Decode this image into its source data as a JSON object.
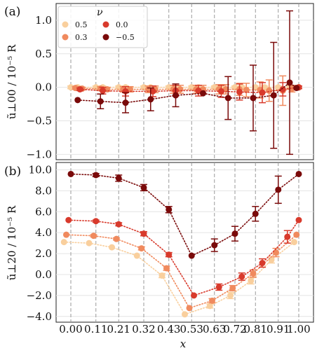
{
  "figure": {
    "xlabel": "x",
    "x_tick_labels": [
      "0.00",
      "0.11",
      "0.21",
      "0.32",
      "0.43",
      "0.53",
      "0.63",
      "0.72",
      "0.81",
      "0.91",
      "1.00"
    ]
  },
  "legend": {
    "title": "ν",
    "entries": [
      {
        "label": "0.5",
        "color": "#f9cf9d"
      },
      {
        "label": "0.3",
        "color": "#f08a5e"
      },
      {
        "label": "0.0",
        "color": "#d83a2c"
      },
      {
        "label": "−0.5",
        "color": "#7a0a0a"
      }
    ]
  },
  "chart_data": [
    {
      "type": "scatter",
      "panel": "(a)",
      "ylabel": "ũ⊥00 / 10⁻⁵ R",
      "ylim": [
        -1.08,
        1.25
      ],
      "y_ticks": [
        -1.0,
        -0.5,
        0.0,
        0.5,
        1.0
      ],
      "y_tick_labels": [
        "−1.0",
        "−0.5",
        "0.0",
        "0.5",
        "1.0"
      ],
      "grid": "horizontal grid lines at y ticks; dashed vertical lines at x ticks",
      "series": [
        {
          "name": "0.5",
          "color": "#f9cf9d",
          "x": [
            0.0,
            0.03,
            0.11,
            0.14,
            0.21,
            0.24,
            0.32,
            0.35,
            0.43,
            0.46,
            0.53,
            0.56,
            0.63,
            0.66,
            0.72,
            0.75,
            0.81,
            0.85,
            0.91,
            0.96,
            1.0
          ],
          "y": [
            0.0,
            0.0,
            0.0,
            0.0,
            0.0,
            0.0,
            0.0,
            0.0,
            0.0,
            0.0,
            0.0,
            0.0,
            0.0,
            0.0,
            0.0,
            0.0,
            0.0,
            0.0,
            0.0,
            0.0,
            0.0
          ],
          "err": [
            0.02,
            0.02,
            0.02,
            0.02,
            0.02,
            0.02,
            0.02,
            0.02,
            0.02,
            0.02,
            0.02,
            0.02,
            0.02,
            0.02,
            0.02,
            0.02,
            0.02,
            0.02,
            0.02,
            0.02,
            0.02
          ]
        },
        {
          "name": "0.3",
          "color": "#f08a5e",
          "x": [
            0.02,
            0.05,
            0.13,
            0.16,
            0.23,
            0.26,
            0.34,
            0.37,
            0.45,
            0.48,
            0.55,
            0.58,
            0.65,
            0.68,
            0.74,
            0.77,
            0.83,
            0.87,
            0.93,
            0.97,
            1.0
          ],
          "y": [
            -0.01,
            -0.02,
            -0.02,
            -0.03,
            -0.03,
            -0.03,
            -0.03,
            -0.03,
            -0.03,
            -0.03,
            -0.03,
            -0.03,
            -0.03,
            -0.03,
            -0.03,
            -0.04,
            -0.04,
            -0.05,
            -0.05,
            -0.02,
            0.0
          ],
          "err": [
            0.02,
            0.02,
            0.03,
            0.03,
            0.04,
            0.04,
            0.05,
            0.05,
            0.06,
            0.06,
            0.06,
            0.06,
            0.07,
            0.07,
            0.09,
            0.1,
            0.12,
            0.16,
            0.22,
            0.05,
            0.02
          ]
        },
        {
          "name": "0.0",
          "color": "#d83a2c",
          "x": [
            0.04,
            0.14,
            0.24,
            0.36,
            0.46,
            0.56,
            0.66,
            0.74,
            0.84,
            0.93,
            1.0
          ],
          "y": [
            -0.03,
            -0.05,
            -0.06,
            -0.06,
            -0.05,
            -0.05,
            -0.06,
            -0.07,
            -0.08,
            -0.03,
            0.0
          ],
          "err": [
            0.02,
            0.05,
            0.07,
            0.08,
            0.08,
            0.08,
            0.09,
            0.12,
            0.15,
            0.1,
            0.02
          ]
        },
        {
          "name": "−0.5",
          "color": "#7a0a0a",
          "x": [
            0.03,
            0.13,
            0.24,
            0.35,
            0.46,
            0.58,
            0.69,
            0.8,
            0.89,
            0.96,
            0.99
          ],
          "y": [
            -0.19,
            -0.21,
            -0.23,
            -0.18,
            -0.12,
            -0.09,
            -0.16,
            -0.16,
            -0.12,
            0.07,
            -0.01
          ],
          "err": [
            0.0,
            0.11,
            0.15,
            0.17,
            0.17,
            0.0,
            0.32,
            0.49,
            0.79,
            1.07,
            0.0
          ]
        }
      ]
    },
    {
      "type": "scatter",
      "panel": "(b)",
      "ylabel": "ũ⊥20 / 10⁻⁵ R",
      "ylim": [
        -4.55,
        10.7
      ],
      "y_ticks": [
        -4.0,
        -2.0,
        0.0,
        2.0,
        4.0,
        6.0,
        8.0,
        10.0
      ],
      "y_tick_labels": [
        "−4.0",
        "−2.0",
        "0.0",
        "2.0",
        "4.0",
        "6.0",
        "8.0",
        "10.0"
      ],
      "grid": "horizontal grid lines at y ticks; dashed vertical lines at x ticks",
      "series": [
        {
          "name": "0.5",
          "color": "#f9cf9d",
          "x": [
            -0.03,
            0.08,
            0.18,
            0.29,
            0.4,
            0.5,
            0.61,
            0.7,
            0.79,
            0.88,
            0.98
          ],
          "y": [
            3.1,
            3.0,
            2.6,
            1.8,
            -0.1,
            -3.8,
            -3.0,
            -2.0,
            -0.6,
            1.4,
            3.1
          ],
          "err": [
            0.0,
            0.0,
            0.0,
            0.0,
            0.2,
            0.0,
            0.2,
            0.3,
            0.3,
            0.3,
            0.0
          ]
        },
        {
          "name": "0.3",
          "color": "#f08a5e",
          "x": [
            -0.02,
            0.1,
            0.2,
            0.31,
            0.42,
            0.52,
            0.62,
            0.71,
            0.8,
            0.9,
            0.99
          ],
          "y": [
            3.8,
            3.7,
            3.4,
            2.5,
            0.6,
            -3.2,
            -2.5,
            -1.3,
            0.1,
            2.1,
            3.8
          ],
          "err": [
            0.0,
            0.1,
            0.1,
            0.15,
            0.2,
            0.0,
            0.2,
            0.25,
            0.35,
            0.4,
            0.0
          ]
        },
        {
          "name": "0.0",
          "color": "#d83a2c",
          "x": [
            -0.01,
            0.11,
            0.21,
            0.32,
            0.43,
            0.54,
            0.65,
            0.75,
            0.84,
            0.95,
            1.0
          ],
          "y": [
            5.2,
            5.1,
            4.8,
            3.9,
            1.9,
            -2.0,
            -1.2,
            -0.2,
            1.1,
            3.6,
            5.2
          ],
          "err": [
            0.0,
            0.1,
            0.15,
            0.2,
            0.2,
            0.0,
            0.3,
            0.35,
            0.4,
            0.6,
            0.0
          ]
        },
        {
          "name": "−0.5",
          "color": "#7a0a0a",
          "x": [
            0.0,
            0.11,
            0.21,
            0.32,
            0.43,
            0.53,
            0.63,
            0.72,
            0.81,
            0.91,
            1.0
          ],
          "y": [
            9.6,
            9.5,
            9.2,
            8.3,
            6.2,
            1.8,
            2.8,
            3.9,
            5.8,
            8.1,
            9.6
          ],
          "err": [
            0.0,
            0.15,
            0.3,
            0.3,
            0.3,
            0.0,
            0.6,
            0.7,
            0.7,
            1.3,
            0.0
          ]
        }
      ]
    }
  ]
}
